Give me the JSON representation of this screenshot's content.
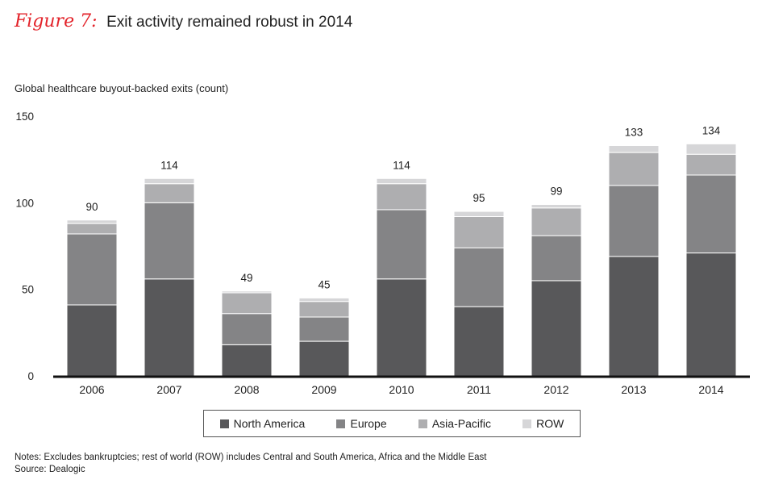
{
  "figure": {
    "label": "Figure 7:",
    "title": "Exit activity remained robust in 2014"
  },
  "notes": {
    "line1": "Notes: Excludes bankruptcies; rest of world (ROW) includes Central and South America, Africa and the Middle East",
    "line2": "Source: Dealogic"
  },
  "chart_data": {
    "type": "bar",
    "stacked": true,
    "title": "Exit activity remained robust in 2014",
    "ylabel": "Global healthcare buyout-backed exits (count)",
    "xlabel": "",
    "ylim": [
      0,
      150
    ],
    "yticks": [
      0,
      50,
      100,
      150
    ],
    "grid": false,
    "legend_position": "bottom",
    "categories": [
      "2006",
      "2007",
      "2008",
      "2009",
      "2010",
      "2011",
      "2012",
      "2013",
      "2014"
    ],
    "totals": [
      90,
      114,
      49,
      45,
      114,
      95,
      99,
      133,
      134
    ],
    "series": [
      {
        "name": "North America",
        "color": "#58585a",
        "values": [
          41,
          56,
          18,
          20,
          56,
          40,
          55,
          69,
          71
        ]
      },
      {
        "name": "Europe",
        "color": "#848486",
        "values": [
          41,
          44,
          18,
          14,
          40,
          34,
          26,
          41,
          45
        ]
      },
      {
        "name": "Asia-Pacific",
        "color": "#aeaeb0",
        "values": [
          6,
          11,
          12,
          9,
          15,
          18,
          16,
          19,
          12
        ]
      },
      {
        "name": "ROW",
        "color": "#d6d6d8",
        "values": [
          2,
          3,
          1,
          2,
          3,
          3,
          2,
          4,
          6
        ]
      }
    ]
  }
}
